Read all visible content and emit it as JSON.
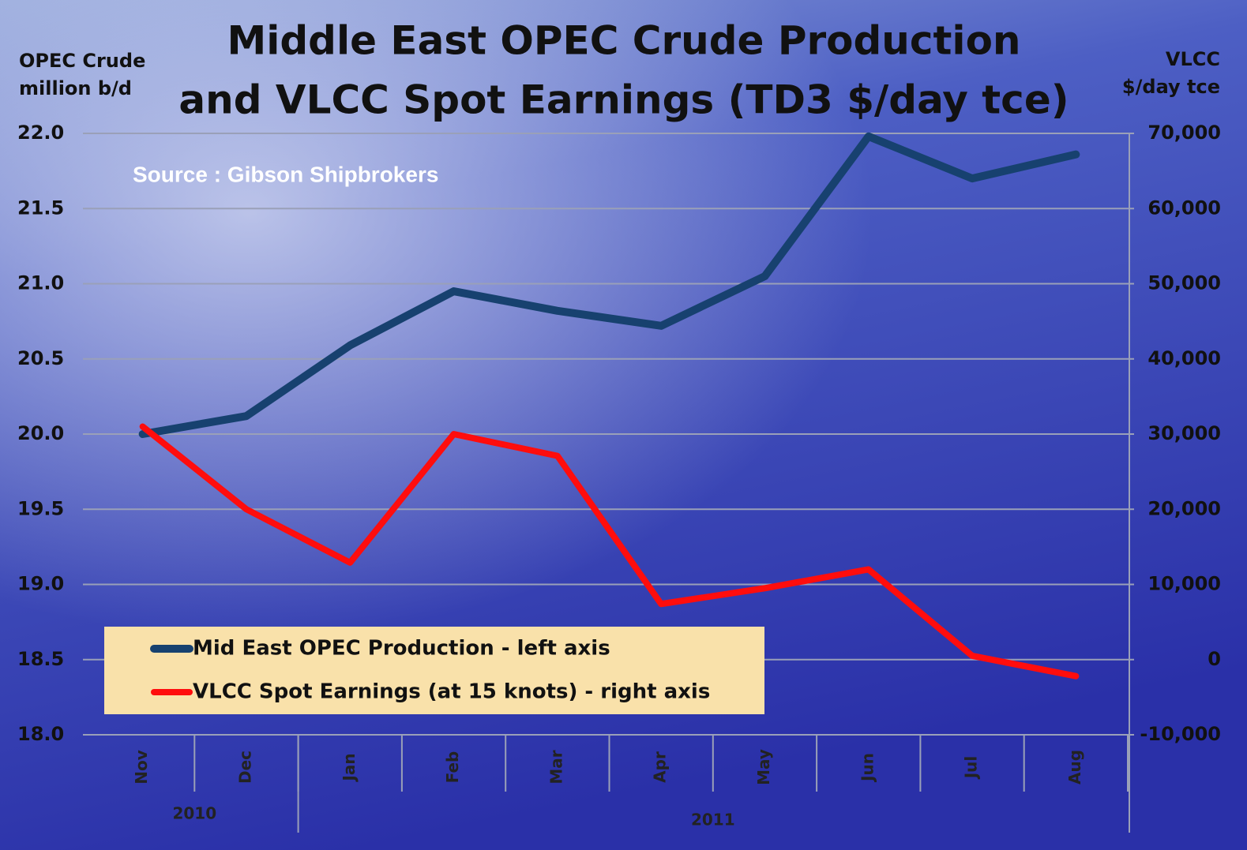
{
  "chart_data": {
    "type": "line",
    "title": [
      "Middle East OPEC Crude Production",
      "and VLCC Spot Earnings (TD3 $/day tce)"
    ],
    "y_label": [
      "OPEC Crude",
      "million b/d"
    ],
    "y2_label": [
      "VLCC",
      "$/day tce"
    ],
    "annotation": "Source : Gibson Shipbrokers",
    "categories": [
      "Nov",
      "Dec",
      "Jan",
      "Feb",
      "Mar",
      "Apr",
      "May",
      "Jun",
      "Jul",
      "Aug"
    ],
    "year_labels": [
      "2010",
      "2011"
    ],
    "series": [
      {
        "name": "Mid East OPEC Production - left axis",
        "color": "#17416f",
        "values": [
          20.0,
          20.12,
          20.59,
          20.95,
          20.82,
          20.72,
          21.05,
          21.98,
          21.7,
          21.86
        ]
      },
      {
        "name": "VLCC Spot Earnings (at 15 knots) - right axis",
        "color": "#ff0d0d",
        "axis": "y2",
        "values": [
          31000,
          20000,
          12900,
          30000,
          27100,
          7400,
          9500,
          12000,
          500,
          -2200
        ]
      }
    ],
    "ylim": [
      18.0,
      22.0
    ],
    "yticks": [
      {
        "value": 18,
        "label": "18.0"
      },
      {
        "value": 18.5,
        "label": "18.5"
      },
      {
        "value": 19,
        "label": "19.0"
      },
      {
        "value": 19.5,
        "label": "19.5"
      },
      {
        "value": 20,
        "label": "20.0"
      },
      {
        "value": 20.5,
        "label": "20.5"
      },
      {
        "value": 21,
        "label": "21.0"
      },
      {
        "value": 21.5,
        "label": "21.5"
      },
      {
        "value": 22,
        "label": "22.0"
      }
    ],
    "y2lim": [
      -10000,
      70000
    ],
    "y2ticks": [
      {
        "value": -10000,
        "label": "-10,000"
      },
      0,
      {
        "value": 10000,
        "label": "10,000"
      },
      {
        "value": 20000,
        "label": "20,000"
      },
      {
        "value": 30000,
        "label": "30,000"
      },
      {
        "value": 40000,
        "label": "40,000"
      },
      {
        "value": 50000,
        "label": "50,000"
      },
      {
        "value": 60000,
        "label": "60,000"
      },
      {
        "value": 70000,
        "label": "70,000"
      }
    ],
    "grid": true
  }
}
